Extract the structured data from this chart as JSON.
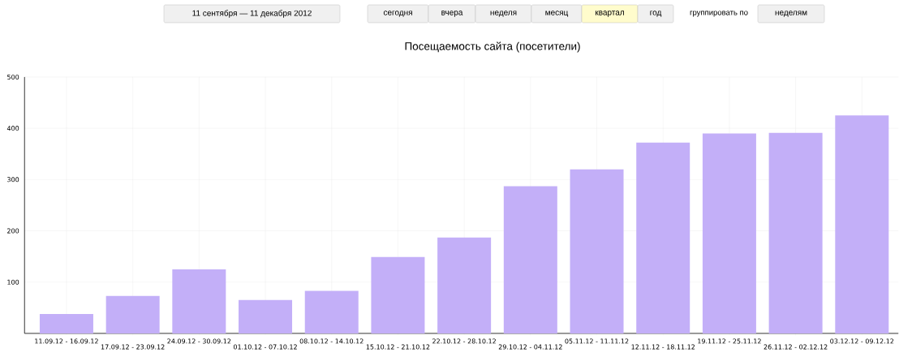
{
  "chart_data": {
    "type": "bar",
    "title": "Посещаемость сайта (посетители)",
    "categories": [
      "11.09.12 - 16.09.12",
      "17.09.12 - 23.09.12",
      "24.09.12 - 30.09.12",
      "01.10.12 - 07.10.12",
      "08.10.12 - 14.10.12",
      "15.10.12 - 21.10.12",
      "22.10.12 - 28.10.12",
      "29.10.12 - 04.11.12",
      "05.11.12 - 11.11.12",
      "12.11.12 - 18.11.12",
      "19.11.12 - 25.11.12",
      "26.11.12 - 02.12.12",
      "03.12.12 - 09.12.12"
    ],
    "values": [
      38,
      73,
      125,
      65,
      83,
      149,
      187,
      287,
      320,
      372,
      390,
      391,
      425
    ],
    "color": "#c3aff8",
    "ylim": [
      0,
      500
    ],
    "yticks": [
      100,
      200,
      300,
      400,
      500
    ],
    "grid": true,
    "annotations": [
      "11 сентября — 11 декабря 2012",
      "сегодня",
      "вчера",
      "неделя",
      "месяц",
      "квартал",
      "год",
      "группировать по",
      "неделям"
    ]
  }
}
